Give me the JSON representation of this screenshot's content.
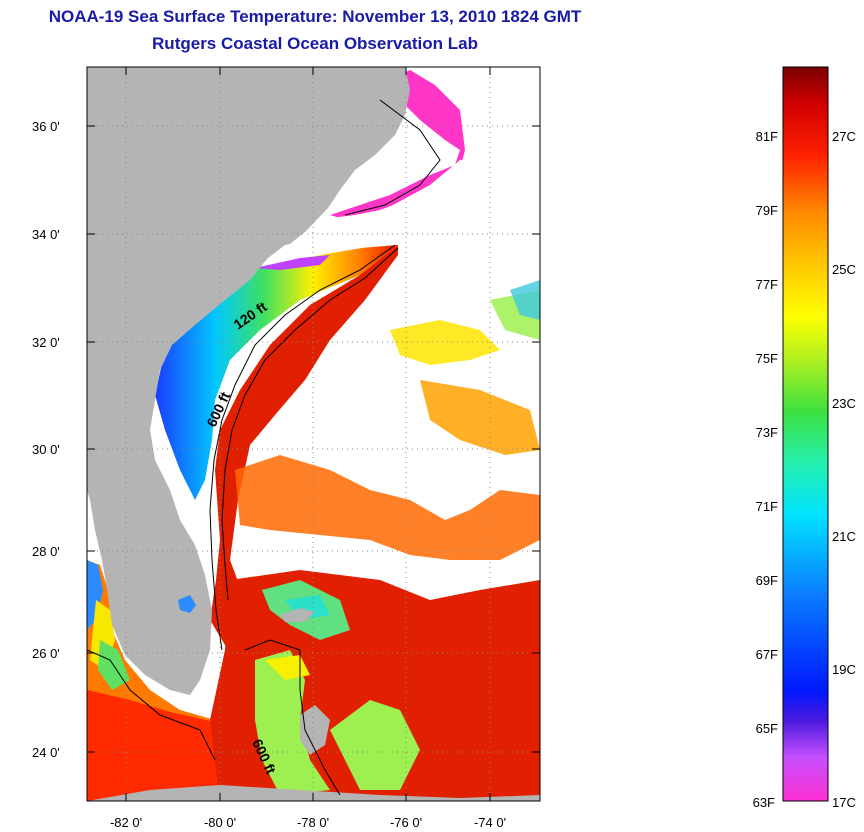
{
  "header": {
    "title": "NOAA-19 Sea Surface Temperature:  November 13, 2010 1824 GMT",
    "subtitle": "Rutgers Coastal Ocean Observation Lab"
  },
  "map": {
    "lat_labels": [
      "36 0'",
      "34 0'",
      "32 0'",
      "30 0'",
      "28 0'",
      "26 0'",
      "24 0'"
    ],
    "lon_labels": [
      "-82 0'",
      "-80 0'",
      "-78 0'",
      "-76 0'",
      "-74 0'"
    ],
    "contour_labels": [
      "120 ft",
      "600 ft",
      "600 ft"
    ],
    "colors": {
      "land": "#b4b4b4",
      "cloud": "#ffffff",
      "grid": "#888888"
    }
  },
  "colorbar": {
    "fahrenheit_labels": [
      "81F",
      "79F",
      "77F",
      "75F",
      "73F",
      "71F",
      "69F",
      "67F",
      "65F",
      "63F"
    ],
    "celsius_labels": [
      "27C",
      "25C",
      "23C",
      "21C",
      "19C",
      "17C"
    ]
  }
}
